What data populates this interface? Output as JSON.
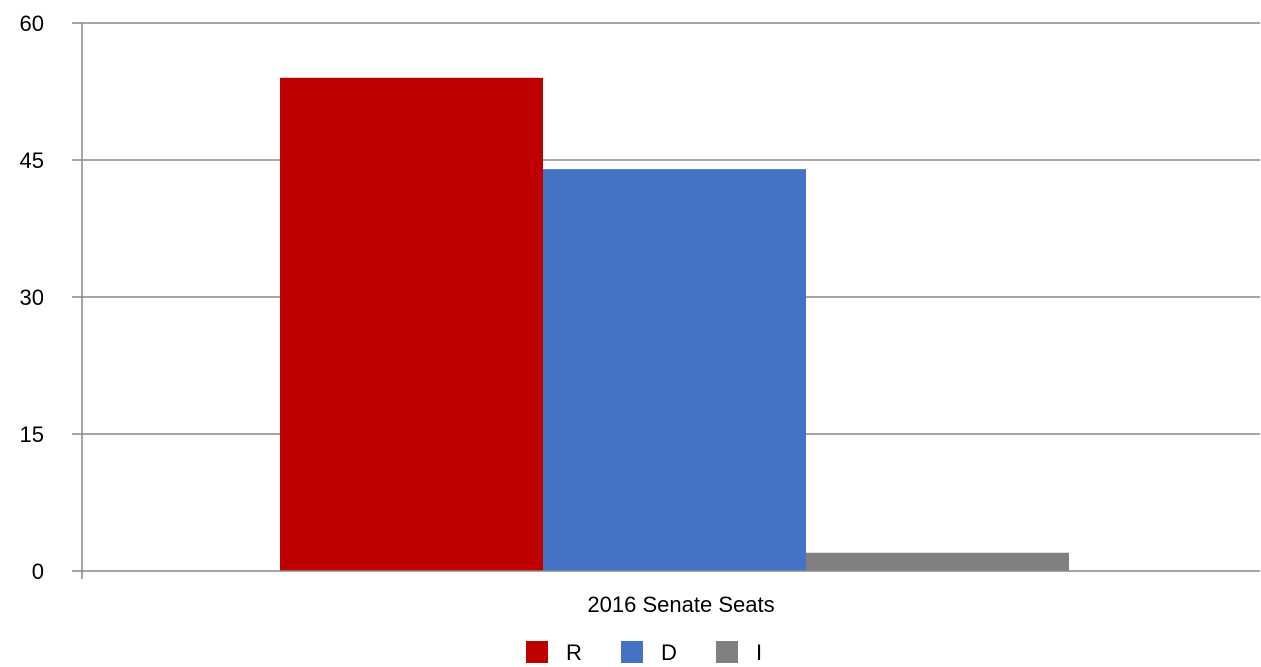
{
  "chart_data": {
    "type": "bar",
    "title": "",
    "xlabel": "",
    "ylabel": "",
    "categories": [
      "2016 Senate Seats"
    ],
    "series": [
      {
        "name": "R",
        "values": [
          54
        ],
        "color": "#c00000"
      },
      {
        "name": "D",
        "values": [
          44
        ],
        "color": "#4472c4"
      },
      {
        "name": "I",
        "values": [
          2
        ],
        "color": "#808080"
      }
    ],
    "ylim": [
      0,
      60
    ],
    "yticks": [
      0,
      15,
      30,
      45,
      60
    ],
    "grid": true,
    "legend_position": "bottom"
  }
}
